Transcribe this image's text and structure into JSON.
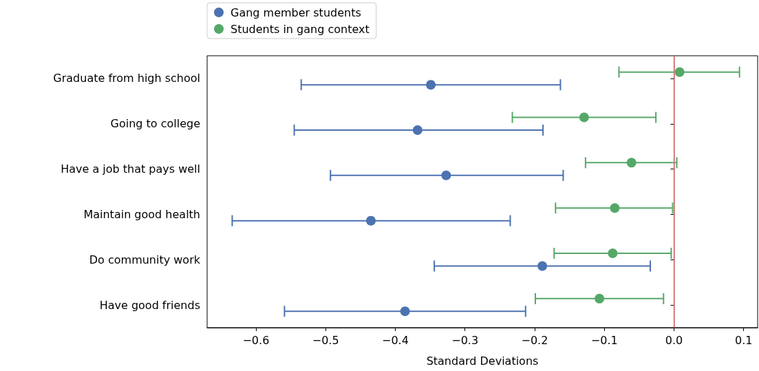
{
  "chart_data": {
    "type": "scatter",
    "orientation": "horizontal",
    "xlabel": "Standard Deviations",
    "categories": [
      "Graduate from high school",
      "Going to college",
      "Have a job that pays well",
      "Maintain good health",
      "Do community work",
      "Have good friends"
    ],
    "series": [
      {
        "name": "Gang member students",
        "color": "#4c72b0",
        "values": [
          -0.349,
          -0.368,
          -0.327,
          -0.435,
          -0.189,
          -0.386
        ],
        "errors": [
          [
            -0.535,
            -0.163
          ],
          [
            -0.545,
            -0.188
          ],
          [
            -0.493,
            -0.159
          ],
          [
            -0.634,
            -0.235
          ],
          [
            -0.344,
            -0.034
          ],
          [
            -0.559,
            -0.213
          ]
        ]
      },
      {
        "name": "Students in gang context",
        "color": "#55a868",
        "values": [
          0.008,
          -0.129,
          -0.061,
          -0.085,
          -0.088,
          -0.107
        ],
        "errors": [
          [
            -0.079,
            0.094
          ],
          [
            -0.232,
            -0.026
          ],
          [
            -0.127,
            0.004
          ],
          [
            -0.17,
            -0.002
          ],
          [
            -0.172,
            -0.004
          ],
          [
            -0.199,
            -0.015
          ]
        ]
      }
    ],
    "xlim": [
      -0.67,
      0.12
    ],
    "xticks": [
      {
        "value": -0.6,
        "label": "−0.6"
      },
      {
        "value": -0.5,
        "label": "−0.5"
      },
      {
        "value": -0.4,
        "label": "−0.4"
      },
      {
        "value": -0.3,
        "label": "−0.3"
      },
      {
        "value": -0.2,
        "label": "−0.2"
      },
      {
        "value": -0.1,
        "label": "−0.1"
      },
      {
        "value": 0,
        "label": "0.0"
      },
      {
        "value": 0.1,
        "label": "0.1"
      }
    ],
    "ref_lines": [
      {
        "axis": "x",
        "value": 0,
        "color": "#f08080"
      }
    ],
    "marker": "circle",
    "legend": "top left",
    "grid": false
  }
}
